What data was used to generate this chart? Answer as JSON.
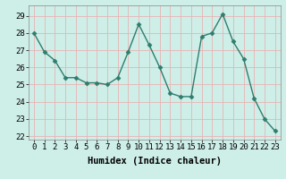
{
  "x": [
    0,
    1,
    2,
    3,
    4,
    5,
    6,
    7,
    8,
    9,
    10,
    11,
    12,
    13,
    14,
    15,
    16,
    17,
    18,
    19,
    20,
    21,
    22,
    23
  ],
  "y": [
    28.0,
    26.9,
    26.4,
    25.4,
    25.4,
    25.1,
    25.1,
    25.0,
    25.4,
    26.9,
    28.5,
    27.3,
    26.0,
    24.5,
    24.3,
    24.3,
    27.8,
    28.0,
    29.1,
    27.5,
    26.5,
    24.2,
    23.0,
    22.3
  ],
  "line_color": "#2e7d6e",
  "marker": "D",
  "marker_size": 2.5,
  "bg_color": "#ceeee8",
  "grid_color": "#e8b4b4",
  "title": "",
  "xlabel": "Humidex (Indice chaleur)",
  "ylabel": "",
  "xlim": [
    -0.5,
    23.5
  ],
  "ylim": [
    21.8,
    29.6
  ],
  "yticks": [
    22,
    23,
    24,
    25,
    26,
    27,
    28,
    29
  ],
  "xticks": [
    0,
    1,
    2,
    3,
    4,
    5,
    6,
    7,
    8,
    9,
    10,
    11,
    12,
    13,
    14,
    15,
    16,
    17,
    18,
    19,
    20,
    21,
    22,
    23
  ],
  "tick_fontsize": 6.5,
  "label_fontsize": 7.5,
  "linewidth": 1.0
}
